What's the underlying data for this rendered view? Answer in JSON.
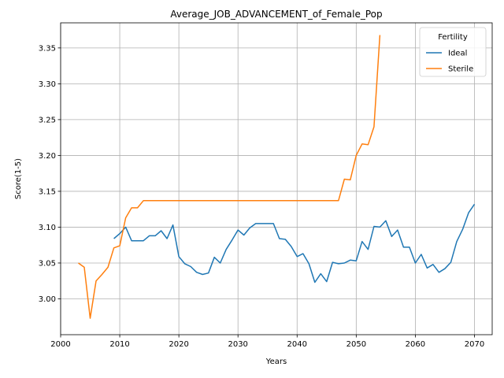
{
  "chart_data": {
    "type": "line",
    "title": "Average_JOB_ADVANCEMENT_of_Female_Pop",
    "xlabel": "Years",
    "ylabel": "Score(1-5)",
    "xlim": [
      2000,
      2073
    ],
    "ylim": [
      2.95,
      3.385
    ],
    "xticks": [
      2000,
      2010,
      2020,
      2030,
      2040,
      2050,
      2060,
      2070
    ],
    "yticks": [
      3.0,
      3.05,
      3.1,
      3.15,
      3.2,
      3.25,
      3.3,
      3.35
    ],
    "grid": true,
    "legend": {
      "title": "Fertility",
      "placement": "top-right"
    },
    "series": [
      {
        "name": "Ideal",
        "color": "#1f77b4",
        "x": [
          2009,
          2010,
          2011,
          2012,
          2013,
          2014,
          2015,
          2016,
          2017,
          2018,
          2019,
          2020,
          2021,
          2022,
          2023,
          2024,
          2025,
          2026,
          2027,
          2028,
          2029,
          2030,
          2031,
          2032,
          2033,
          2034,
          2035,
          2036,
          2037,
          2038,
          2039,
          2040,
          2041,
          2042,
          2043,
          2044,
          2045,
          2046,
          2047,
          2048,
          2049,
          2050,
          2051,
          2052,
          2053,
          2054,
          2055,
          2056,
          2057,
          2058,
          2059,
          2060,
          2061,
          2062,
          2063,
          2064,
          2065,
          2066,
          2067,
          2068,
          2069,
          2070
        ],
        "y": [
          3.084,
          3.091,
          3.1,
          3.081,
          3.081,
          3.081,
          3.088,
          3.088,
          3.095,
          3.084,
          3.103,
          3.059,
          3.049,
          3.045,
          3.037,
          3.034,
          3.036,
          3.058,
          3.05,
          3.069,
          3.082,
          3.096,
          3.089,
          3.099,
          3.105,
          3.105,
          3.105,
          3.105,
          3.084,
          3.083,
          3.073,
          3.059,
          3.063,
          3.049,
          3.023,
          3.035,
          3.024,
          3.051,
          3.049,
          3.05,
          3.054,
          3.053,
          3.08,
          3.069,
          3.101,
          3.1,
          3.109,
          3.087,
          3.096,
          3.072,
          3.072,
          3.05,
          3.062,
          3.043,
          3.048,
          3.037,
          3.042,
          3.051,
          3.08,
          3.097,
          3.12,
          3.132
        ]
      },
      {
        "name": "Sterile",
        "color": "#ff7f0e",
        "x": [
          2003,
          2004,
          2005,
          2006,
          2007,
          2008,
          2009,
          2010,
          2011,
          2012,
          2013,
          2014,
          2015,
          2016,
          2017,
          2018,
          2019,
          2020,
          2021,
          2022,
          2023,
          2024,
          2025,
          2026,
          2027,
          2028,
          2029,
          2030,
          2031,
          2032,
          2033,
          2034,
          2035,
          2036,
          2037,
          2038,
          2039,
          2040,
          2041,
          2042,
          2043,
          2044,
          2045,
          2046,
          2047,
          2048,
          2049,
          2050,
          2051,
          2052,
          2053,
          2054
        ],
        "y": [
          3.05,
          3.044,
          2.973,
          3.025,
          3.034,
          3.044,
          3.071,
          3.074,
          3.113,
          3.127,
          3.127,
          3.137,
          3.137,
          3.137,
          3.137,
          3.137,
          3.137,
          3.137,
          3.137,
          3.137,
          3.137,
          3.137,
          3.137,
          3.137,
          3.137,
          3.137,
          3.137,
          3.137,
          3.137,
          3.137,
          3.137,
          3.137,
          3.137,
          3.137,
          3.137,
          3.137,
          3.137,
          3.137,
          3.137,
          3.137,
          3.137,
          3.137,
          3.137,
          3.137,
          3.137,
          3.167,
          3.166,
          3.2,
          3.216,
          3.215,
          3.24,
          3.368
        ]
      }
    ]
  }
}
